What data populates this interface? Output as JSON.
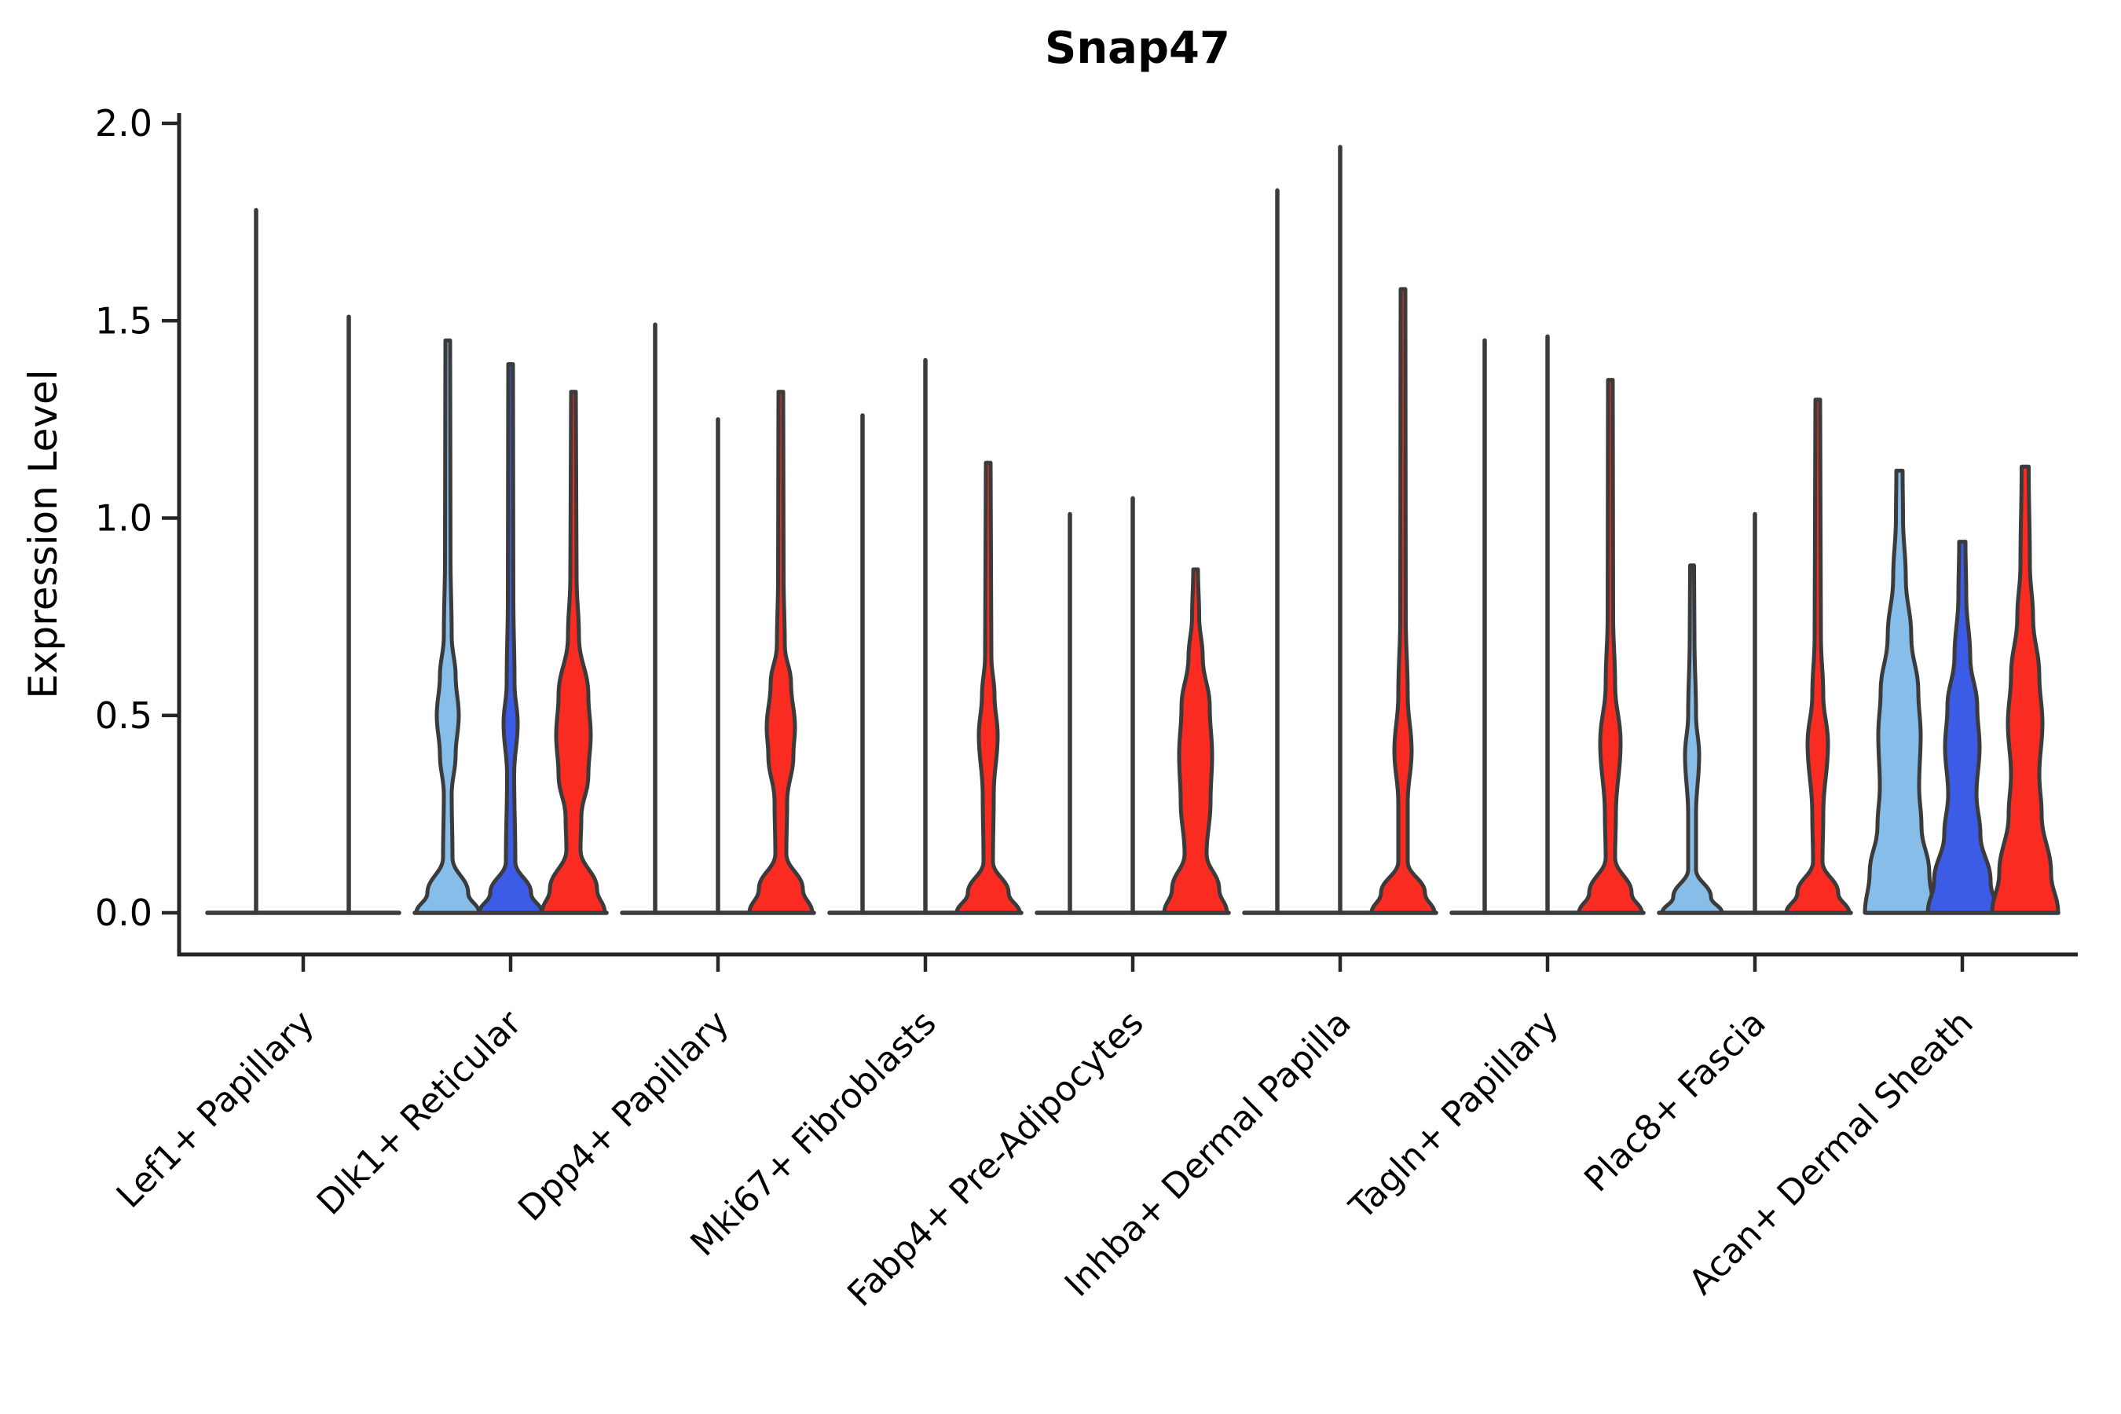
{
  "chart_data": {
    "type": "violin",
    "title": "Snap47",
    "ylabel": "Expression Level",
    "xlabel": "",
    "ylim": [
      -0.1,
      2.03
    ],
    "yticks": [
      0.0,
      0.5,
      1.0,
      1.5,
      2.0
    ],
    "ytick_labels": [
      "0.0",
      "0.5",
      "1.0",
      "1.5",
      "2.0"
    ],
    "grid": false,
    "legend": "none",
    "categories": [
      "Lef1+ Papillary",
      "Dlk1+ Reticular",
      "Dpp4+ Papillary",
      "Mki67+ Fibroblasts",
      "Fabp4+ Pre-Adipocytes",
      "Inhba+ Dermal Papilla",
      "Tagln+ Papillary",
      "Plac8+ Fascia",
      "Acan+ Dermal Sheath"
    ],
    "series_colors": {
      "light_blue": "#87BEE9",
      "blue": "#3C5BE6",
      "red": "#FA2B20"
    },
    "stroke_color": "#3B3B3B",
    "axis_color": "#262626",
    "groups": [
      {
        "category": "Lef1+ Papillary",
        "violins": [
          {
            "series": "light_blue",
            "max": 1.78,
            "shape": "spike",
            "offset": -60
          },
          {
            "series": "blue",
            "max": 1.51,
            "shape": "spike",
            "offset": 58
          },
          {
            "series": "red",
            "max": 0.0,
            "shape": "flat",
            "offset": 0
          }
        ]
      },
      {
        "category": "Dlk1+ Reticular",
        "violins": [
          {
            "series": "light_blue",
            "max": 1.45,
            "shape": "density",
            "profile": [
              [
                0,
                40
              ],
              [
                0.05,
                26
              ],
              [
                0.14,
                6
              ],
              [
                0.3,
                5
              ],
              [
                0.4,
                10
              ],
              [
                0.5,
                14
              ],
              [
                0.6,
                10
              ],
              [
                0.7,
                5
              ],
              [
                0.9,
                3.5
              ],
              [
                1.45,
                3
              ]
            ]
          },
          {
            "series": "blue",
            "max": 1.39,
            "shape": "density",
            "profile": [
              [
                0,
                40
              ],
              [
                0.05,
                26
              ],
              [
                0.13,
                6
              ],
              [
                0.35,
                4.5
              ],
              [
                0.48,
                9
              ],
              [
                0.58,
                5
              ],
              [
                0.8,
                3.5
              ],
              [
                1.39,
                3
              ]
            ]
          },
          {
            "series": "red",
            "max": 1.32,
            "shape": "density",
            "profile": [
              [
                0,
                40
              ],
              [
                0.06,
                30
              ],
              [
                0.16,
                9
              ],
              [
                0.24,
                10
              ],
              [
                0.35,
                19
              ],
              [
                0.45,
                22
              ],
              [
                0.55,
                19
              ],
              [
                0.7,
                7
              ],
              [
                0.85,
                4
              ],
              [
                1.32,
                3
              ]
            ]
          }
        ]
      },
      {
        "category": "Dpp4+ Papillary",
        "violins": [
          {
            "series": "light_blue",
            "max": 1.49,
            "shape": "spike"
          },
          {
            "series": "blue",
            "max": 1.25,
            "shape": "spike"
          },
          {
            "series": "red",
            "max": 1.32,
            "shape": "density",
            "profile": [
              [
                0,
                40
              ],
              [
                0.06,
                28
              ],
              [
                0.15,
                7
              ],
              [
                0.28,
                8
              ],
              [
                0.4,
                16
              ],
              [
                0.47,
                18
              ],
              [
                0.58,
                13
              ],
              [
                0.68,
                5
              ],
              [
                0.85,
                3.5
              ],
              [
                1.32,
                3
              ]
            ]
          }
        ]
      },
      {
        "category": "Mki67+ Fibroblasts",
        "violins": [
          {
            "series": "light_blue",
            "max": 1.26,
            "shape": "spike"
          },
          {
            "series": "blue",
            "max": 1.4,
            "shape": "spike"
          },
          {
            "series": "red",
            "max": 1.14,
            "shape": "density",
            "profile": [
              [
                0,
                40
              ],
              [
                0.05,
                26
              ],
              [
                0.13,
                6
              ],
              [
                0.3,
                7
              ],
              [
                0.45,
                12
              ],
              [
                0.55,
                8
              ],
              [
                0.65,
                4
              ],
              [
                1.14,
                3
              ]
            ]
          }
        ]
      },
      {
        "category": "Fabp4+ Pre-Adipocytes",
        "violins": [
          {
            "series": "light_blue",
            "max": 1.01,
            "shape": "spike"
          },
          {
            "series": "blue",
            "max": 1.05,
            "shape": "spike"
          },
          {
            "series": "red",
            "max": 0.87,
            "shape": "density",
            "profile": [
              [
                0,
                40
              ],
              [
                0.06,
                30
              ],
              [
                0.15,
                14
              ],
              [
                0.28,
                19
              ],
              [
                0.4,
                21
              ],
              [
                0.52,
                18
              ],
              [
                0.65,
                9
              ],
              [
                0.75,
                4.5
              ],
              [
                0.87,
                3
              ]
            ]
          }
        ]
      },
      {
        "category": "Inhba+ Dermal Papilla",
        "violins": [
          {
            "series": "light_blue",
            "max": 1.83,
            "shape": "spike"
          },
          {
            "series": "blue",
            "max": 1.94,
            "shape": "spike"
          },
          {
            "series": "red",
            "max": 1.58,
            "shape": "density",
            "profile": [
              [
                0,
                40
              ],
              [
                0.05,
                28
              ],
              [
                0.13,
                6
              ],
              [
                0.28,
                6
              ],
              [
                0.41,
                11
              ],
              [
                0.55,
                6
              ],
              [
                0.75,
                3.5
              ],
              [
                1.58,
                3
              ]
            ]
          }
        ]
      },
      {
        "category": "Tagln+ Papillary",
        "violins": [
          {
            "series": "light_blue",
            "max": 1.45,
            "shape": "spike"
          },
          {
            "series": "blue",
            "max": 1.46,
            "shape": "spike"
          },
          {
            "series": "red",
            "max": 1.35,
            "shape": "density",
            "profile": [
              [
                0,
                40
              ],
              [
                0.05,
                27
              ],
              [
                0.14,
                6
              ],
              [
                0.25,
                7
              ],
              [
                0.43,
                13
              ],
              [
                0.58,
                6
              ],
              [
                0.75,
                3.5
              ],
              [
                1.35,
                3
              ]
            ]
          }
        ]
      },
      {
        "category": "Plac8+ Fascia",
        "violins": [
          {
            "series": "light_blue",
            "max": 0.88,
            "shape": "density",
            "profile": [
              [
                0,
                38
              ],
              [
                0.04,
                24
              ],
              [
                0.11,
                5
              ],
              [
                0.25,
                5
              ],
              [
                0.4,
                9
              ],
              [
                0.5,
                5
              ],
              [
                0.7,
                3
              ],
              [
                0.88,
                2.5
              ]
            ]
          },
          {
            "series": "blue",
            "max": 1.01,
            "shape": "spike"
          },
          {
            "series": "red",
            "max": 1.3,
            "shape": "density",
            "profile": [
              [
                0,
                40
              ],
              [
                0.05,
                26
              ],
              [
                0.13,
                6
              ],
              [
                0.25,
                7
              ],
              [
                0.43,
                13
              ],
              [
                0.55,
                7
              ],
              [
                0.7,
                4
              ],
              [
                1.3,
                3
              ]
            ]
          }
        ]
      },
      {
        "category": "Acan+ Dermal Sheath",
        "violins": [
          {
            "series": "light_blue",
            "max": 1.12,
            "shape": "density",
            "profile": [
              [
                0,
                44
              ],
              [
                0.1,
                38
              ],
              [
                0.22,
                28
              ],
              [
                0.32,
                25
              ],
              [
                0.45,
                27
              ],
              [
                0.56,
                24
              ],
              [
                0.7,
                15
              ],
              [
                0.85,
                8
              ],
              [
                1.0,
                4.5
              ],
              [
                1.12,
                4
              ]
            ]
          },
          {
            "series": "blue",
            "max": 0.94,
            "shape": "density",
            "profile": [
              [
                0,
                44
              ],
              [
                0.08,
                36
              ],
              [
                0.2,
                23
              ],
              [
                0.3,
                18
              ],
              [
                0.42,
                22
              ],
              [
                0.52,
                19
              ],
              [
                0.65,
                10
              ],
              [
                0.8,
                5
              ],
              [
                0.94,
                4
              ]
            ]
          },
          {
            "series": "red",
            "max": 1.13,
            "shape": "density",
            "profile": [
              [
                0,
                42
              ],
              [
                0.1,
                33
              ],
              [
                0.25,
                21
              ],
              [
                0.35,
                18
              ],
              [
                0.48,
                22
              ],
              [
                0.6,
                18
              ],
              [
                0.75,
                10
              ],
              [
                0.88,
                6
              ],
              [
                1.13,
                4.5
              ]
            ]
          }
        ]
      }
    ]
  }
}
